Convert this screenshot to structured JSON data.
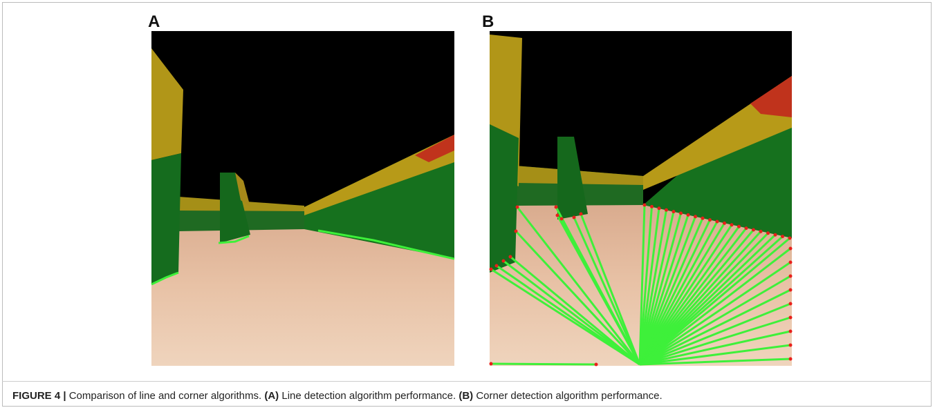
{
  "figure": {
    "panels": [
      {
        "label": "A"
      },
      {
        "label": "B"
      }
    ],
    "caption": {
      "figure_label": "FIGURE 4 |",
      "title": "Comparison of line and corner algorithms.",
      "parts": [
        {
          "label": "(A)",
          "text": "Line detection algorithm performance."
        },
        {
          "label": "(B)",
          "text": "Corner detection algorithm performance."
        }
      ]
    }
  }
}
